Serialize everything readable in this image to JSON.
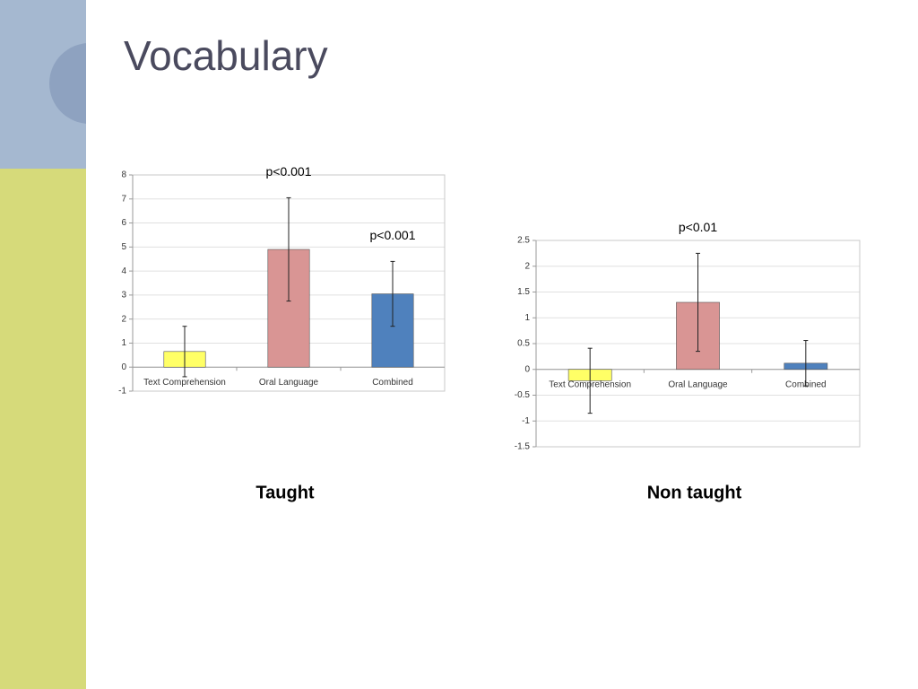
{
  "title": "Vocabulary",
  "chart_data": [
    {
      "type": "bar",
      "caption": "Taught",
      "categories": [
        "Text Comprehension",
        "Oral Language",
        "Combined"
      ],
      "values": [
        0.65,
        4.9,
        3.05
      ],
      "errors": [
        1.05,
        2.15,
        1.35
      ],
      "colors": [
        "#ffff66",
        "#d99594",
        "#4f81bd"
      ],
      "annotations": [
        null,
        "p<0.001",
        "p<0.001"
      ],
      "ylim": [
        -1,
        8
      ],
      "yticks": [
        -1,
        0,
        1,
        2,
        3,
        4,
        5,
        6,
        7,
        8
      ],
      "grid": true
    },
    {
      "type": "bar",
      "caption": "Non taught",
      "categories": [
        "Text Comprehension",
        "Oral Language",
        "Combined"
      ],
      "values": [
        -0.22,
        1.3,
        0.12
      ],
      "errors": [
        0.63,
        0.95,
        0.44
      ],
      "colors": [
        "#ffff66",
        "#d99594",
        "#4f81bd"
      ],
      "annotations": [
        null,
        "p<0.01",
        null
      ],
      "ylim": [
        -1.5,
        2.5
      ],
      "yticks": [
        -1.5,
        -1,
        -0.5,
        0,
        0.5,
        1,
        1.5,
        2,
        2.5
      ],
      "grid": true
    }
  ]
}
